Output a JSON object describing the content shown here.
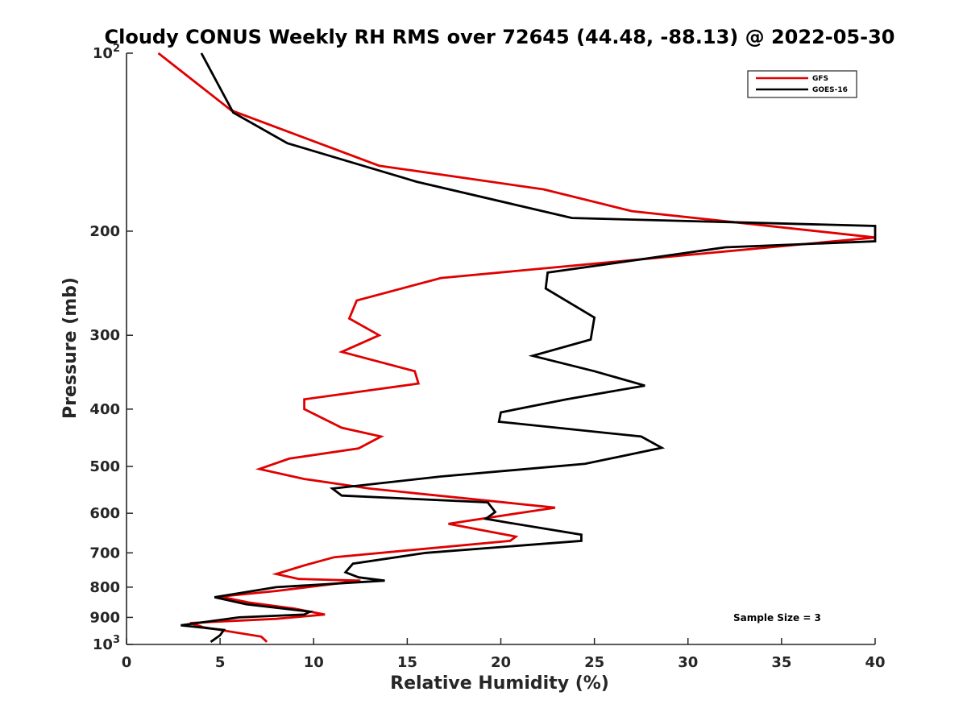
{
  "chart_data": {
    "type": "line",
    "title": "Cloudy CONUS Weekly RH RMS over 72645 (44.48, -88.13) @ 2022-05-30",
    "xlabel": "Relative Humidity (%)",
    "ylabel": "Pressure (mb)",
    "xlim": [
      0,
      40
    ],
    "ylim": [
      100,
      1000
    ],
    "y_scale": "log",
    "y_reversed": true,
    "grid": false,
    "legend_position": "top-right",
    "x_ticks": [
      "0",
      "5",
      "10",
      "15",
      "20",
      "25",
      "30",
      "35",
      "40"
    ],
    "y_ticks": [
      {
        "value": 100,
        "base": "10",
        "exp": "2"
      },
      {
        "value": 200,
        "label": "200"
      },
      {
        "value": 300,
        "label": "300"
      },
      {
        "value": 400,
        "label": "400"
      },
      {
        "value": 500,
        "label": "500"
      },
      {
        "value": 600,
        "label": "600"
      },
      {
        "value": 700,
        "label": "700"
      },
      {
        "value": 800,
        "label": "800"
      },
      {
        "value": 900,
        "label": "900"
      },
      {
        "value": 1000,
        "base": "10",
        "exp": "3"
      }
    ],
    "series": [
      {
        "name": "GFS",
        "color": "#e00000",
        "points": [
          [
            1.7,
            100
          ],
          [
            5.6,
            125
          ],
          [
            13.5,
            155
          ],
          [
            22.3,
            170
          ],
          [
            27.0,
            185
          ],
          [
            40.0,
            205
          ],
          [
            16.8,
            240
          ],
          [
            12.3,
            262
          ],
          [
            11.9,
            281
          ],
          [
            13.5,
            300
          ],
          [
            11.5,
            320
          ],
          [
            15.4,
            345
          ],
          [
            15.6,
            362
          ],
          [
            9.5,
            385
          ],
          [
            9.5,
            400
          ],
          [
            11.5,
            430
          ],
          [
            13.6,
            445
          ],
          [
            12.4,
            466
          ],
          [
            8.7,
            485
          ],
          [
            7.1,
            505
          ],
          [
            9.5,
            525
          ],
          [
            13.0,
            545
          ],
          [
            19.0,
            570
          ],
          [
            22.9,
            587
          ],
          [
            17.2,
            625
          ],
          [
            20.8,
            657
          ],
          [
            20.5,
            668
          ],
          [
            11.1,
            712
          ],
          [
            9.5,
            735
          ],
          [
            8.0,
            760
          ],
          [
            9.2,
            775
          ],
          [
            12.5,
            780
          ],
          [
            8.0,
            812
          ],
          [
            5.0,
            830
          ],
          [
            6.6,
            850
          ],
          [
            9.0,
            870
          ],
          [
            10.6,
            890
          ],
          [
            8.0,
            905
          ],
          [
            3.4,
            920
          ],
          [
            4.1,
            935
          ],
          [
            7.2,
            970
          ],
          [
            7.5,
            990
          ]
        ]
      },
      {
        "name": "GOES-16",
        "color": "#000000",
        "points": [
          [
            4.0,
            100
          ],
          [
            5.7,
            126
          ],
          [
            8.6,
            142
          ],
          [
            15.5,
            165
          ],
          [
            23.8,
            190
          ],
          [
            40.0,
            196
          ],
          [
            40.0,
            208
          ],
          [
            32.0,
            213
          ],
          [
            22.5,
            235
          ],
          [
            22.4,
            250
          ],
          [
            25.0,
            280
          ],
          [
            24.8,
            305
          ],
          [
            21.7,
            325
          ],
          [
            25.0,
            345
          ],
          [
            27.7,
            365
          ],
          [
            23.5,
            385
          ],
          [
            20.0,
            405
          ],
          [
            19.9,
            420
          ],
          [
            27.5,
            445
          ],
          [
            28.6,
            465
          ],
          [
            24.5,
            495
          ],
          [
            16.8,
            520
          ],
          [
            11.0,
            545
          ],
          [
            11.5,
            560
          ],
          [
            19.3,
            575
          ],
          [
            19.7,
            597
          ],
          [
            19.2,
            613
          ],
          [
            20.5,
            623
          ],
          [
            24.3,
            652
          ],
          [
            24.3,
            668
          ],
          [
            16.0,
            700
          ],
          [
            12.1,
            730
          ],
          [
            11.7,
            755
          ],
          [
            12.4,
            770
          ],
          [
            13.8,
            780
          ],
          [
            8.0,
            800
          ],
          [
            4.7,
            832
          ],
          [
            6.4,
            855
          ],
          [
            9.8,
            880
          ],
          [
            9.5,
            890
          ],
          [
            6.0,
            900
          ],
          [
            2.9,
            928
          ],
          [
            5.2,
            945
          ],
          [
            5.0,
            965
          ],
          [
            4.5,
            990
          ]
        ]
      }
    ],
    "annotation": "Sample Size = 3"
  }
}
